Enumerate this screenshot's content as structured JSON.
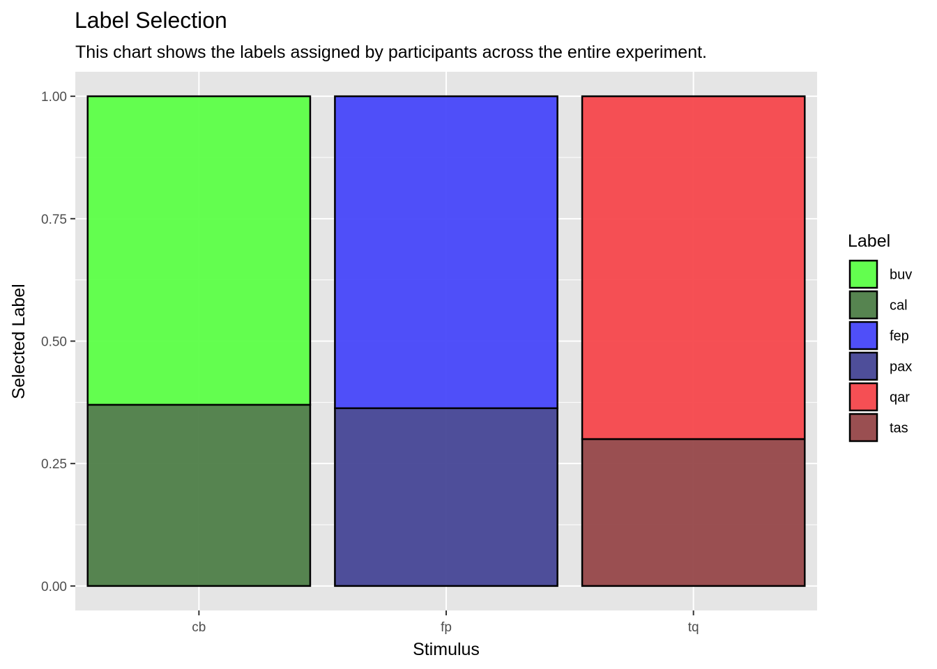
{
  "chart_data": {
    "type": "bar",
    "stacked": true,
    "title": "Label Selection",
    "subtitle": "This chart shows the labels assigned by participants across the entire experiment.",
    "xlabel": "Stimulus",
    "ylabel": "Selected Label",
    "ylim": [
      -0.05,
      1.05
    ],
    "yticks": [
      "0.00",
      "0.25",
      "0.50",
      "0.75",
      "1.00"
    ],
    "ytick_values": [
      0,
      0.25,
      0.5,
      0.75,
      1.0
    ],
    "categories": [
      "cb",
      "fp",
      "tq"
    ],
    "grid": true,
    "legend": {
      "title": "Label",
      "position": "right",
      "entries": [
        {
          "name": "buv",
          "color": "#5CFF47"
        },
        {
          "name": "cal",
          "color": "#4E7E48"
        },
        {
          "name": "fep",
          "color": "#4747FA"
        },
        {
          "name": "pax",
          "color": "#464696"
        },
        {
          "name": "qar",
          "color": "#F5474C"
        },
        {
          "name": "tas",
          "color": "#964749"
        }
      ]
    },
    "bars": [
      {
        "category": "cb",
        "segments": [
          {
            "label": "cal",
            "value": 0.37
          },
          {
            "label": "buv",
            "value": 0.63
          }
        ]
      },
      {
        "category": "fp",
        "segments": [
          {
            "label": "pax",
            "value": 0.363
          },
          {
            "label": "fep",
            "value": 0.637
          }
        ]
      },
      {
        "category": "tq",
        "segments": [
          {
            "label": "tas",
            "value": 0.3
          },
          {
            "label": "qar",
            "value": 0.7
          }
        ]
      }
    ],
    "colors": {
      "panel_background": "#E5E5E5",
      "grid": "#FFFFFF",
      "bar_outline": "#000000"
    }
  }
}
